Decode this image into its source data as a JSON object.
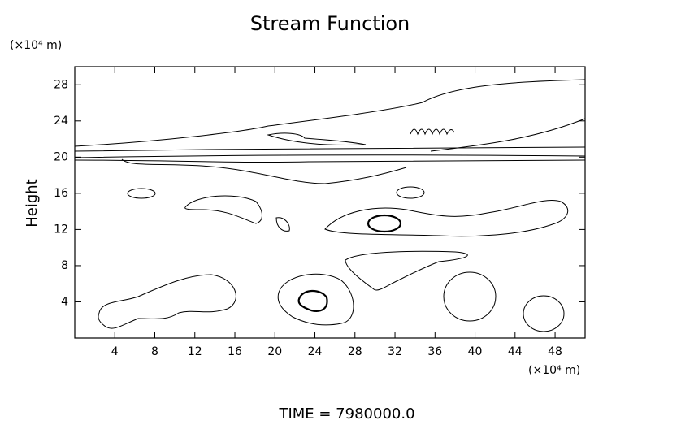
{
  "chart_data": {
    "type": "contour",
    "title": "Stream Function",
    "y_unit": "(×10⁴ m)",
    "y_label": "Height",
    "x_unit": "(×10⁴ m)",
    "footer": "TIME = 7980000.0",
    "xlim": [
      0,
      51
    ],
    "ylim": [
      0,
      30
    ],
    "xticks": [
      4,
      8,
      12,
      16,
      20,
      24,
      28,
      32,
      36,
      40,
      44,
      48
    ],
    "yticks": [
      4,
      8,
      12,
      16,
      20,
      24,
      28
    ]
  }
}
